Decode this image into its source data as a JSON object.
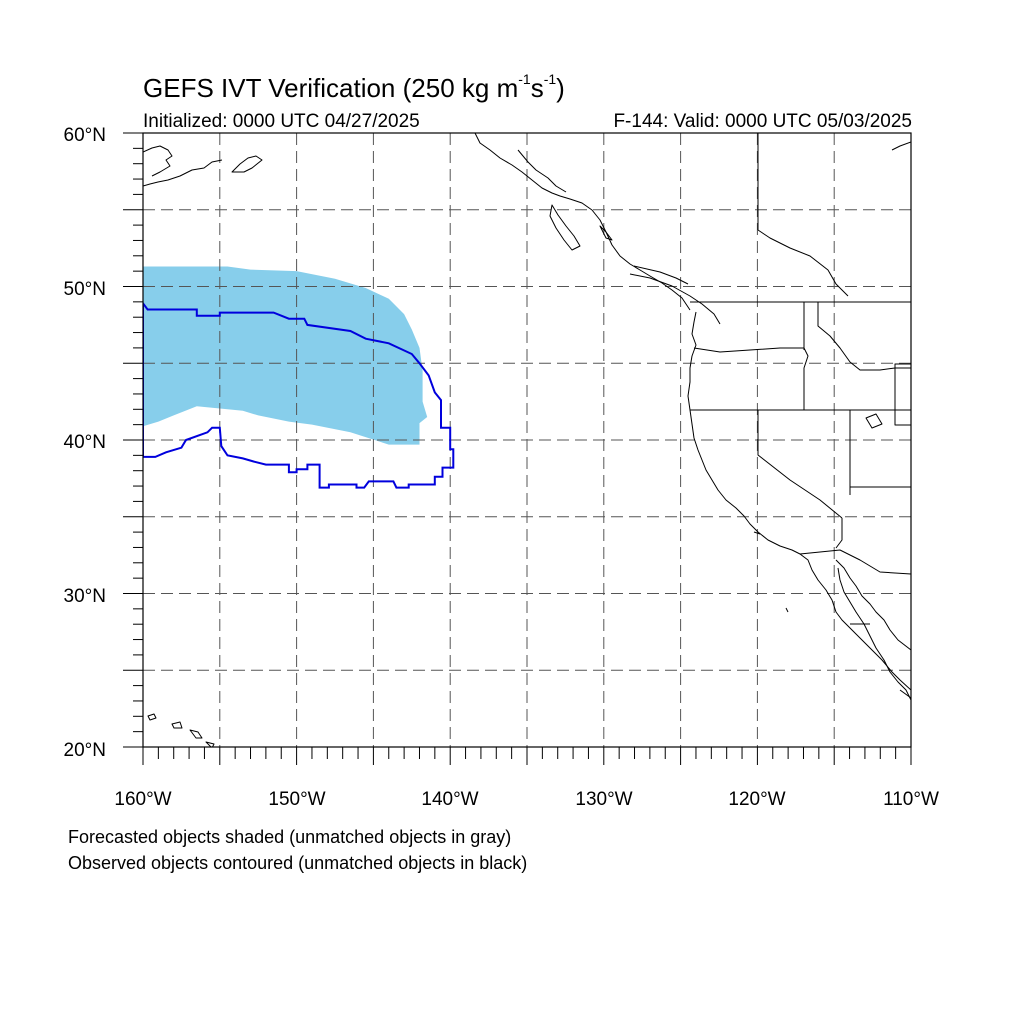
{
  "title": {
    "prefix": "GEFS IVT Verification (250 kg m",
    "exp1": "-1",
    "middle": "s",
    "exp2": "-1",
    "suffix": ")"
  },
  "subtitle_left": "Initialized: 0000 UTC 04/27/2025",
  "subtitle_right": "F-144: Valid: 0000 UTC 05/03/2025",
  "footnotes": [
    "Forecasted objects shaded (unmatched objects in gray)",
    "Observed objects contoured (unmatched objects in black)"
  ],
  "map": {
    "lon_range": [
      -160,
      -110
    ],
    "lat_range": [
      20,
      60
    ],
    "gridlines": "dashed",
    "lat_labels": [
      "20°N",
      "30°N",
      "40°N",
      "50°N",
      "60°N"
    ],
    "lon_labels": [
      "160°W",
      "150°W",
      "140°W",
      "130°W",
      "120°W",
      "110°W"
    ],
    "colors": {
      "forecast_fill": "#87ceeb",
      "observed_contour": "#0000dd",
      "coastline": "#000000"
    },
    "forecast_object": [
      [
        -160,
        51.3
      ],
      [
        -154.5,
        51.3
      ],
      [
        -153,
        51.1
      ],
      [
        -150,
        51
      ],
      [
        -147.5,
        50.5
      ],
      [
        -145.5,
        49.9
      ],
      [
        -144,
        49.2
      ],
      [
        -143,
        48.2
      ],
      [
        -142.5,
        47.2
      ],
      [
        -142,
        46
      ],
      [
        -141.8,
        44.5
      ],
      [
        -141.8,
        42.5
      ],
      [
        -141.5,
        41.5
      ],
      [
        -142,
        41.1
      ],
      [
        -142,
        39.7
      ],
      [
        -144,
        39.7
      ],
      [
        -146.5,
        40.5
      ],
      [
        -149,
        41
      ],
      [
        -150.5,
        41.2
      ],
      [
        -152.5,
        41.6
      ],
      [
        -153.5,
        41.9
      ],
      [
        -156.5,
        42.2
      ],
      [
        -158,
        41.6
      ],
      [
        -159,
        41.2
      ],
      [
        -160,
        40.9
      ]
    ],
    "observed_object": [
      [
        -160,
        48.9
      ],
      [
        -159.7,
        48.5
      ],
      [
        -156.5,
        48.5
      ],
      [
        -156.5,
        48.1
      ],
      [
        -155,
        48.1
      ],
      [
        -155,
        48.3
      ],
      [
        -151.5,
        48.3
      ],
      [
        -150.5,
        47.9
      ],
      [
        -149.5,
        47.9
      ],
      [
        -149.3,
        47.5
      ],
      [
        -146.5,
        47.1
      ],
      [
        -145.5,
        46.6
      ],
      [
        -144,
        46.3
      ],
      [
        -142.5,
        45.6
      ],
      [
        -142,
        45
      ],
      [
        -141.4,
        44.2
      ],
      [
        -141,
        43.1
      ],
      [
        -140.6,
        42.6
      ],
      [
        -140.6,
        40.8
      ],
      [
        -140,
        40.8
      ],
      [
        -140,
        39.4
      ],
      [
        -139.8,
        39.4
      ],
      [
        -139.8,
        38.2
      ],
      [
        -140.5,
        38.2
      ],
      [
        -140.5,
        37.6
      ],
      [
        -141,
        37.6
      ],
      [
        -141,
        37.1
      ],
      [
        -142.7,
        37.1
      ],
      [
        -142.7,
        36.9
      ],
      [
        -143.5,
        36.9
      ],
      [
        -143.7,
        37.3
      ],
      [
        -145.3,
        37.3
      ],
      [
        -145.6,
        36.9
      ],
      [
        -146.1,
        36.9
      ],
      [
        -146.1,
        37.1
      ],
      [
        -147.9,
        37.1
      ],
      [
        -147.9,
        36.9
      ],
      [
        -148.5,
        36.9
      ],
      [
        -148.5,
        38.4
      ],
      [
        -149.3,
        38.4
      ],
      [
        -149.3,
        38.1
      ],
      [
        -150,
        38.1
      ],
      [
        -150,
        37.9
      ],
      [
        -150.5,
        37.9
      ],
      [
        -150.5,
        38.4
      ],
      [
        -152,
        38.4
      ],
      [
        -152.8,
        38.6
      ],
      [
        -153.5,
        38.8
      ],
      [
        -154.5,
        39
      ],
      [
        -154.9,
        39.6
      ],
      [
        -155,
        40.8
      ],
      [
        -155.5,
        40.8
      ],
      [
        -155.8,
        40.5
      ],
      [
        -157.2,
        40
      ],
      [
        -157.5,
        39.5
      ],
      [
        -158.5,
        39.2
      ],
      [
        -159.2,
        38.9
      ],
      [
        -160,
        38.9
      ]
    ]
  }
}
